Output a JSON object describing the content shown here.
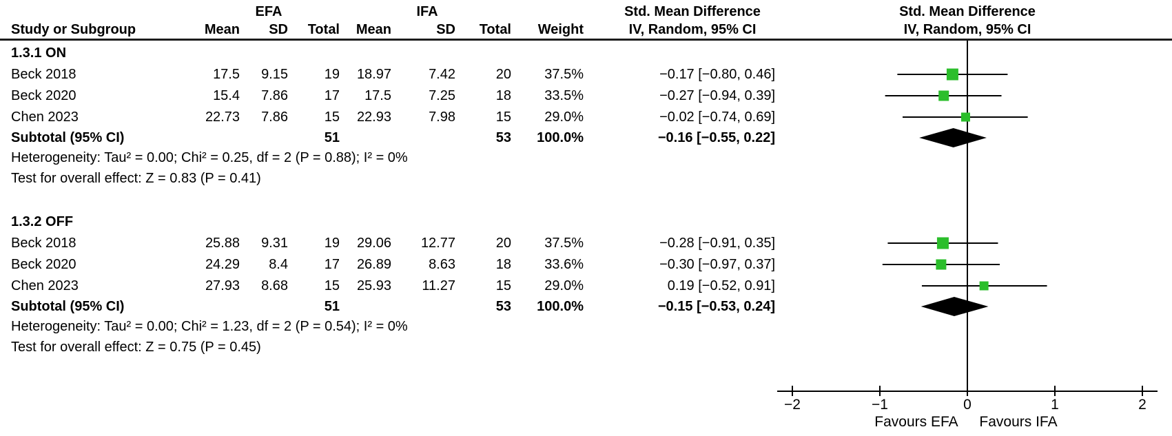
{
  "table_header": {
    "study": "Study or Subgroup",
    "efa_group": "EFA",
    "ifa_group": "IFA",
    "mean": "Mean",
    "sd": "SD",
    "total": "Total",
    "weight": "Weight",
    "smd_line1": "Std. Mean Difference",
    "smd_line2": "IV, Random, 95% CI"
  },
  "axis": {
    "tick_labels": [
      "−2",
      "−1",
      "0",
      "1",
      "2"
    ],
    "tick_values": [
      -2,
      -1,
      0,
      1,
      2
    ],
    "favours_left": "Favours EFA",
    "favours_right": "Favours IFA"
  },
  "colors": {
    "marker_green": "#2BBE2B",
    "diamond_black": "#000000",
    "line_black": "#000000"
  },
  "chart_data": {
    "type": "forest",
    "effect_measure": "Std. Mean Difference, IV, Random, 95% CI",
    "xlim": [
      -2.2,
      2.35
    ],
    "subgroups": [
      {
        "label": "1.3.1 ON",
        "studies": [
          {
            "study": "Beck 2018",
            "efa_mean": "17.5",
            "efa_sd": "9.15",
            "efa_total": "19",
            "ifa_mean": "18.97",
            "ifa_sd": "7.42",
            "ifa_total": "20",
            "weight": "37.5%",
            "weight_num": 37.5,
            "ci_text": "−0.17 [−0.80, 0.46]",
            "est": -0.17,
            "lo": -0.8,
            "hi": 0.46
          },
          {
            "study": "Beck 2020",
            "efa_mean": "15.4",
            "efa_sd": "7.86",
            "efa_total": "17",
            "ifa_mean": "17.5",
            "ifa_sd": "7.25",
            "ifa_total": "18",
            "weight": "33.5%",
            "weight_num": 33.5,
            "ci_text": "−0.27 [−0.94, 0.39]",
            "est": -0.27,
            "lo": -0.94,
            "hi": 0.39
          },
          {
            "study": "Chen 2023",
            "efa_mean": "22.73",
            "efa_sd": "7.86",
            "efa_total": "15",
            "ifa_mean": "22.93",
            "ifa_sd": "7.98",
            "ifa_total": "15",
            "weight": "29.0%",
            "weight_num": 29.0,
            "ci_text": "−0.02 [−0.74, 0.69]",
            "est": -0.02,
            "lo": -0.74,
            "hi": 0.69
          }
        ],
        "subtotal": {
          "label": "Subtotal (95% CI)",
          "efa_total": "51",
          "ifa_total": "53",
          "weight": "100.0%",
          "ci_text": "−0.16 [−0.55, 0.22]",
          "est": -0.16,
          "lo": -0.55,
          "hi": 0.22
        },
        "heterogeneity": "Heterogeneity: Tau² = 0.00; Chi² = 0.25, df = 2 (P = 0.88); I² = 0%",
        "overall_effect": "Test for overall effect: Z = 0.83 (P = 0.41)"
      },
      {
        "label": "1.3.2 OFF",
        "studies": [
          {
            "study": "Beck 2018",
            "efa_mean": "25.88",
            "efa_sd": "9.31",
            "efa_total": "19",
            "ifa_mean": "29.06",
            "ifa_sd": "12.77",
            "ifa_total": "20",
            "weight": "37.5%",
            "weight_num": 37.5,
            "ci_text": "−0.28 [−0.91, 0.35]",
            "est": -0.28,
            "lo": -0.91,
            "hi": 0.35
          },
          {
            "study": "Beck 2020",
            "efa_mean": "24.29",
            "efa_sd": "8.4",
            "efa_total": "17",
            "ifa_mean": "26.89",
            "ifa_sd": "8.63",
            "ifa_total": "18",
            "weight": "33.6%",
            "weight_num": 33.6,
            "ci_text": "−0.30 [−0.97, 0.37]",
            "est": -0.3,
            "lo": -0.97,
            "hi": 0.37
          },
          {
            "study": "Chen 2023",
            "efa_mean": "27.93",
            "efa_sd": "8.68",
            "efa_total": "15",
            "ifa_mean": "25.93",
            "ifa_sd": "11.27",
            "ifa_total": "15",
            "weight": "29.0%",
            "weight_num": 29.0,
            "ci_text": "0.19 [−0.52, 0.91]",
            "est": 0.19,
            "lo": -0.52,
            "hi": 0.91
          }
        ],
        "subtotal": {
          "label": "Subtotal (95% CI)",
          "efa_total": "51",
          "ifa_total": "53",
          "weight": "100.0%",
          "ci_text": "−0.15 [−0.53, 0.24]",
          "est": -0.15,
          "lo": -0.53,
          "hi": 0.24
        },
        "heterogeneity": "Heterogeneity: Tau² = 0.00; Chi² = 1.23, df = 2 (P = 0.54); I² = 0%",
        "overall_effect": "Test for overall effect: Z = 0.75 (P = 0.45)"
      }
    ]
  }
}
